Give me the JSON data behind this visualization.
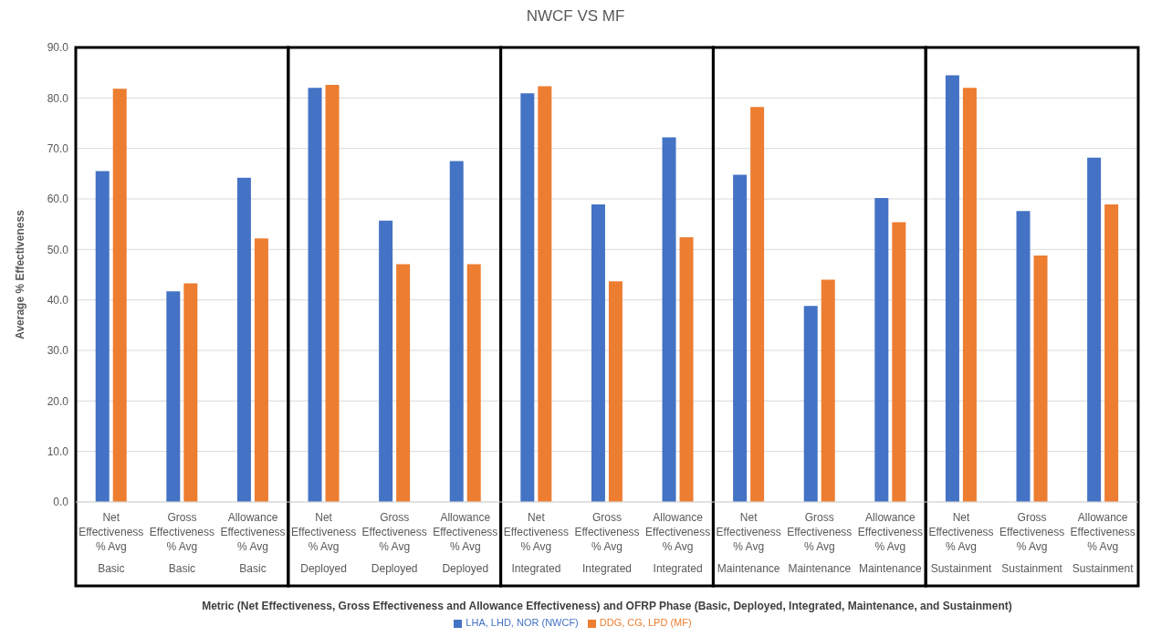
{
  "chart_data": {
    "type": "bar",
    "title": "NWCF VS MF",
    "xlabel": "Metric (Net Effectiveness, Gross Effectiveness and Allowance Effectiveness) and OFRP Phase (Basic, Deployed, Integrated, Maintenance, and Sustainment)",
    "ylabel": "Average % Effectiveness",
    "categories": [
      "Net\nEffectiveness\n% Avg\nBasic",
      "Gross\nEffectiveness\n% Avg\nBasic",
      "Allowance\nEffectiveness\n% Avg\nBasic",
      "Net\nEffectiveness\n% Avg\nDeployed",
      "Gross\nEffectiveness\n% Avg\nDeployed",
      "Allowance\nEffectiveness\n% Avg\nDeployed",
      "Net\nEffectiveness\n% Avg\nIntegrated",
      "Gross\nEffectiveness\n% Avg\nIntegrated",
      "Allowance\nEffectiveness\n% Avg\nIntegrated",
      "Net\nEffectiveness\n% Avg\nMaintenance",
      "Gross\nEffectiveness\n% Avg\nMaintenance",
      "Allowance\nEffectiveness\n% Avg\nMaintenance",
      "Net\nEffectiveness\n% Avg\nSustainment",
      "Gross\nEffectiveness\n% Avg\nSustainment",
      "Allowance\nEffectiveness\n% Avg\nSustainment"
    ],
    "series": [
      {
        "name": "LHA, LHD, NOR (NWCF)",
        "color": "#4472c4",
        "values": [
          65.5,
          41.7,
          64.2,
          82.0,
          55.7,
          67.5,
          80.9,
          58.9,
          72.2,
          64.8,
          38.8,
          60.2,
          84.5,
          57.6,
          68.2
        ]
      },
      {
        "name": "DDG, CG, LPD (MF)",
        "color": "#ed7d31",
        "values": [
          81.8,
          43.3,
          52.2,
          82.6,
          47.1,
          47.1,
          82.3,
          43.7,
          52.4,
          78.2,
          44.0,
          55.4,
          82.0,
          48.8,
          58.9
        ]
      }
    ],
    "ylim": [
      0,
      90
    ],
    "yticks": [
      {
        "value": 0,
        "label": "0.0"
      },
      {
        "value": 10,
        "label": "10.0"
      },
      {
        "value": 20,
        "label": "20.0"
      },
      {
        "value": 30,
        "label": "30.0"
      },
      {
        "value": 40,
        "label": "40.0"
      },
      {
        "value": 50,
        "label": "50.0"
      },
      {
        "value": 60,
        "label": "60.0"
      },
      {
        "value": 70,
        "label": "70.0"
      },
      {
        "value": 80,
        "label": "80.0"
      },
      {
        "value": 90,
        "label": "90.0"
      }
    ],
    "grid": "y",
    "legend": "bottom"
  }
}
